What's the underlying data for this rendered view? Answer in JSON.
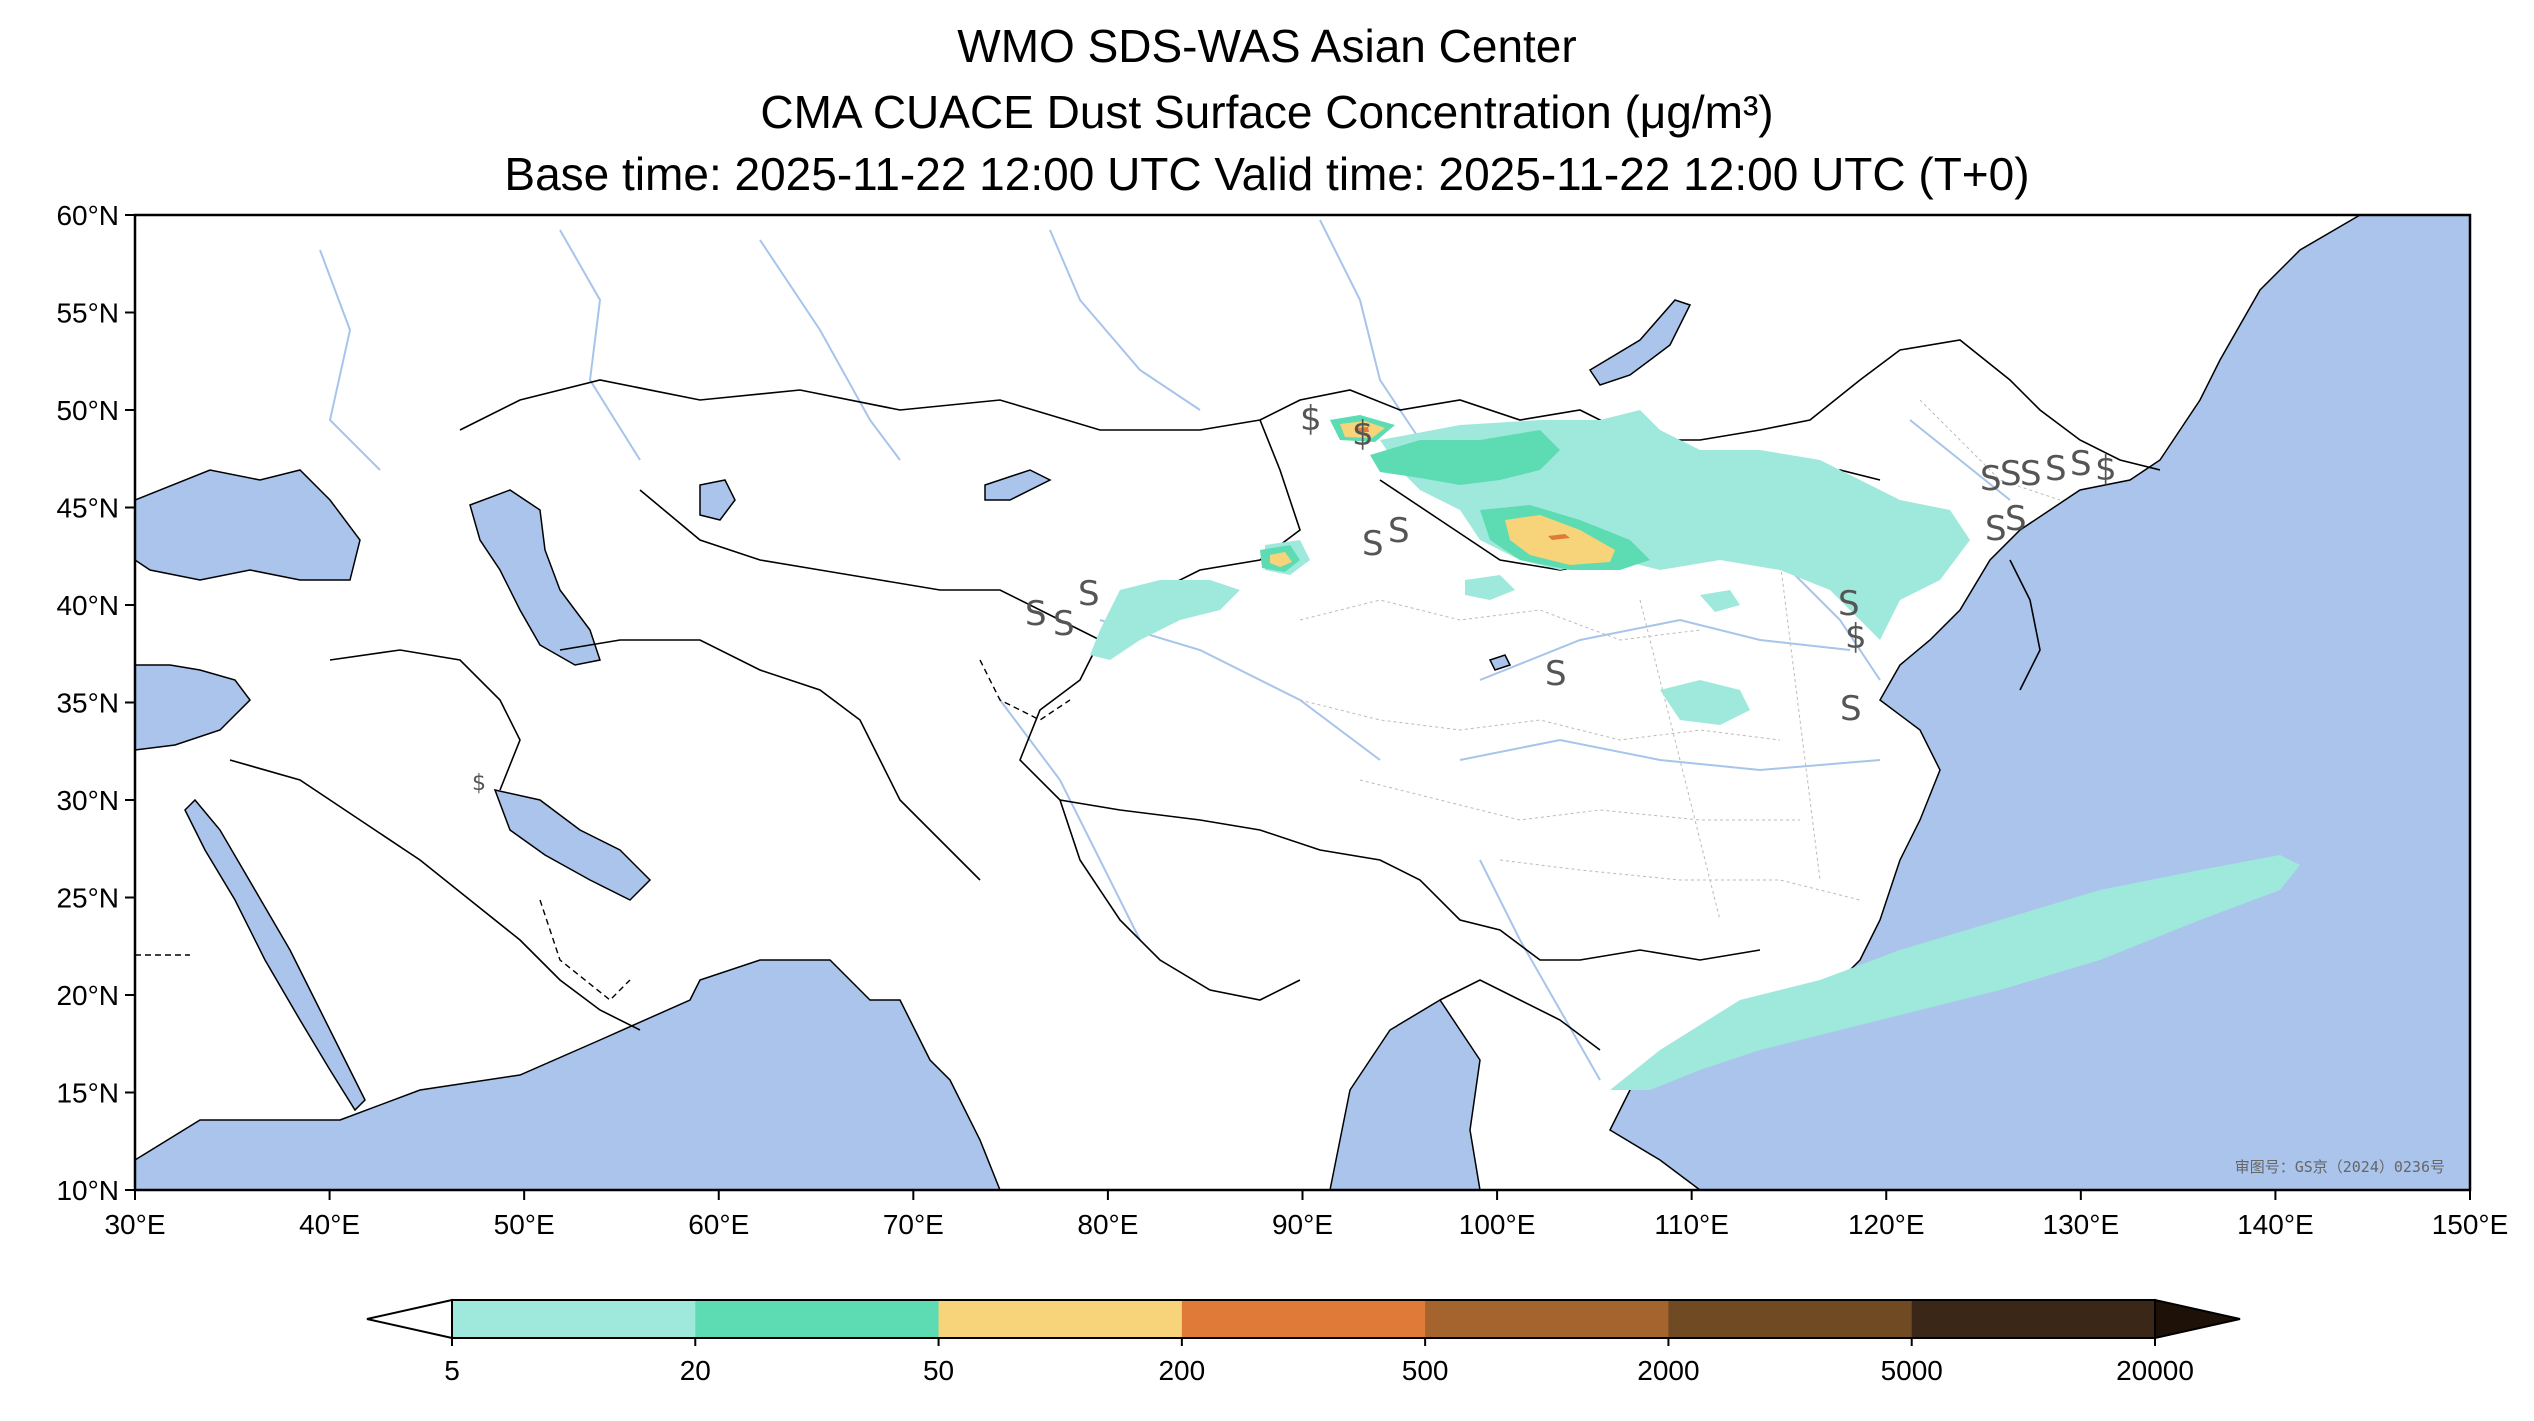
{
  "title": {
    "line1": "WMO SDS-WAS Asian Center",
    "line2": "CMA CUACE Dust Surface Concentration (μg/m³)",
    "line3": "Base time: 2025-11-22 12:00 UTC Valid time: 2025-11-22 12:00 UTC (T+0)"
  },
  "map": {
    "lon_range": [
      30,
      150
    ],
    "lat_range": [
      10,
      60
    ],
    "ocean_color": "#aac4ec",
    "land_color": "#ffffff",
    "watermark": "审图号：GS京（2024）0236号",
    "lon_ticks": [
      "30°E",
      "40°E",
      "50°E",
      "60°E",
      "70°E",
      "80°E",
      "90°E",
      "100°E",
      "110°E",
      "120°E",
      "130°E",
      "140°E",
      "150°E"
    ],
    "lat_ticks": [
      "60°N",
      "55°N",
      "50°N",
      "45°N",
      "40°N",
      "35°N",
      "30°N",
      "25°N",
      "20°N",
      "15°N",
      "10°N"
    ]
  },
  "colorbar": {
    "labels": [
      "5",
      "20",
      "50",
      "200",
      "500",
      "2000",
      "5000",
      "20000"
    ],
    "colors": [
      "#9ee9dc",
      "#5ddcb3",
      "#f7d47a",
      "#e07a38",
      "#a5642d",
      "#6f4a22",
      "#3b2718"
    ],
    "under_color": "#ffffff",
    "over_color": "#1e1108"
  },
  "chart_data": {
    "type": "heatmap",
    "quantity": "Dust Surface Concentration",
    "unit": "μg/m³",
    "levels": [
      5,
      20,
      50,
      200,
      500,
      2000,
      5000,
      20000
    ],
    "xlim": [
      30,
      150
    ],
    "ylim": [
      10,
      60
    ]
  }
}
